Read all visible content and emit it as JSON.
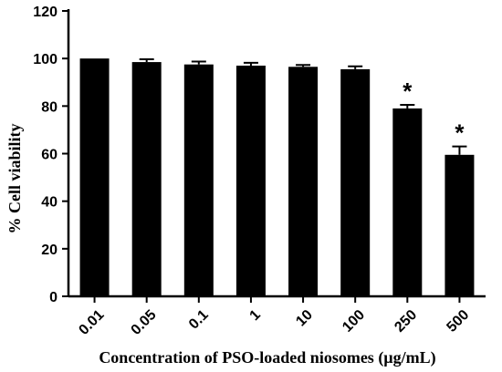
{
  "chart_data": {
    "type": "bar",
    "title": "",
    "xlabel": "Concentration of PSO-loaded niosomes (µg/mL)",
    "ylabel": "% Cell viability",
    "ylim": [
      0,
      120
    ],
    "yticks": [
      0,
      20,
      40,
      60,
      80,
      100,
      120
    ],
    "categories": [
      "0.01",
      "0.05",
      "0.1",
      "1",
      "10",
      "100",
      "250",
      "500"
    ],
    "values": [
      100,
      98.5,
      97.5,
      97,
      96.5,
      95.5,
      79,
      59.5
    ],
    "errors": [
      0,
      1.2,
      1.2,
      1.2,
      0.8,
      1.2,
      1.5,
      3.5
    ],
    "significance": [
      "",
      "",
      "",
      "",
      "",
      "",
      "*",
      "*"
    ],
    "grid": false,
    "bar_color": "#000000"
  }
}
